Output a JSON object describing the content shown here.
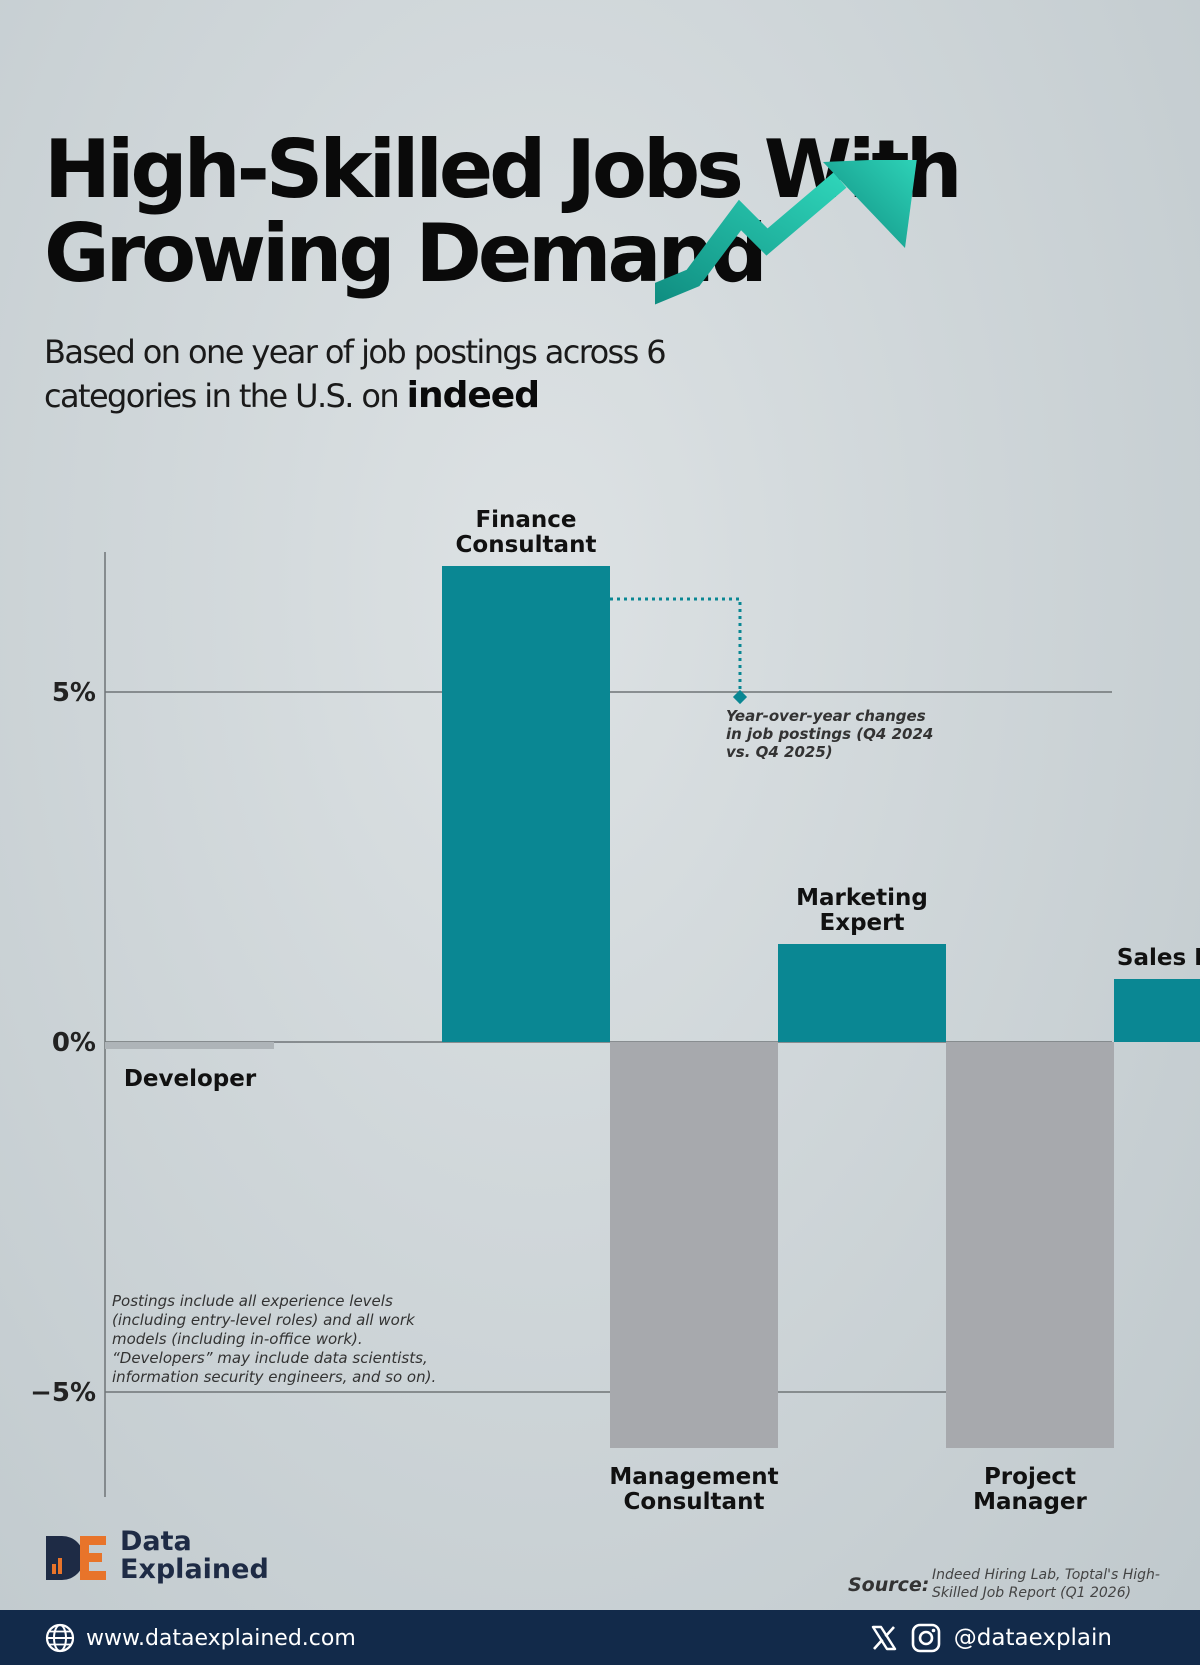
{
  "title": {
    "line1": "High-Skilled Jobs With",
    "line2": "Growing Demand"
  },
  "subtitle": {
    "text_line1": "Based on one year of job postings across  6",
    "text_line2": "categories in the U.S. on",
    "logo": "indeed"
  },
  "chart_data": {
    "type": "bar",
    "categories": [
      "Developer",
      "Finance Consultant",
      "Management Consultant",
      "Marketing Expert",
      "Project Manager",
      "Sales Expert"
    ],
    "values": [
      -0.1,
      6.8,
      -5.8,
      1.4,
      -5.8,
      0.9
    ],
    "label_lines": [
      [
        "Developer"
      ],
      [
        "Finance",
        "Consultant"
      ],
      [
        "Management",
        "Consultant"
      ],
      [
        "Marketing",
        "Expert"
      ],
      [
        "Project",
        "Manager"
      ],
      [
        "Sales Expert"
      ]
    ],
    "ylim": [
      -6.5,
      7.0
    ],
    "yticks": [
      5,
      0,
      -5
    ],
    "ytick_labels": [
      "5%",
      "0%",
      "−5%"
    ],
    "grid": true,
    "colors": {
      "positive": "#0a8793",
      "negative": "#a7a9ad",
      "developer": "#aeb4b8",
      "axis": "#6f7477"
    },
    "annotation": {
      "target": "Finance Consultant",
      "text_lines": [
        "Year-over-year changes",
        "in job postings (Q4 2024",
        "vs. Q4 2025)"
      ]
    }
  },
  "note": "Postings include all experience levels (including entry-level roles) and all work models (including in-office work). “Developers” may include data scientists, information security engineers, and so on).",
  "brand": {
    "line1": "Data",
    "line2": "Explained"
  },
  "source": {
    "label": "Source:",
    "text": "Indeed Hiring Lab, Toptal's High-Skilled Job Report (Q1 2026)"
  },
  "footer": {
    "website": "www.dataexplained.com",
    "handle": "@dataexplain"
  },
  "icons": [
    "trend-arrow-icon",
    "globe-icon",
    "x-logo-icon",
    "instagram-icon",
    "data-explained-logo-icon"
  ],
  "accent_color": "#1fb8a3",
  "footer_color": "#122a4a"
}
